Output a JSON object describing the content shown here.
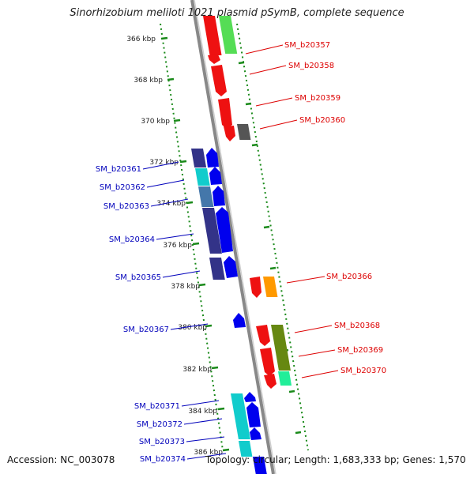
{
  "title": "Sinorhizobium meliloti 1021 plasmid pSymB, complete sequence",
  "footer": {
    "accession": "Accession: NC_003078",
    "topology": "Topology: circular; Length: 1,683,333 bp; Genes: 1,570"
  },
  "ruler_ticks": [
    "366 kbp",
    "368 kbp",
    "370 kbp",
    "372 kbp",
    "374 kbp",
    "376 kbp",
    "378 kbp",
    "380 kbp",
    "382 kbp",
    "384 kbp",
    "386 kbp"
  ],
  "colors": {
    "forward_label": "#dd0000",
    "reverse_label": "#0000bb",
    "backbone": "#888888",
    "dotted_track": "#1a8a1a"
  },
  "genes_forward": [
    {
      "name": "SM_b20357"
    },
    {
      "name": "SM_b20358"
    },
    {
      "name": "SM_b20359"
    },
    {
      "name": "SM_b20360"
    },
    {
      "name": "SM_b20366"
    },
    {
      "name": "SM_b20368"
    },
    {
      "name": "SM_b20369"
    },
    {
      "name": "SM_b20370"
    }
  ],
  "genes_reverse": [
    {
      "name": "SM_b20361"
    },
    {
      "name": "SM_b20362"
    },
    {
      "name": "SM_b20363"
    },
    {
      "name": "SM_b20364"
    },
    {
      "name": "SM_b20365"
    },
    {
      "name": "SM_b20367"
    },
    {
      "name": "SM_b20371"
    },
    {
      "name": "SM_b20372"
    },
    {
      "name": "SM_b20373"
    },
    {
      "name": "SM_b20374"
    }
  ]
}
